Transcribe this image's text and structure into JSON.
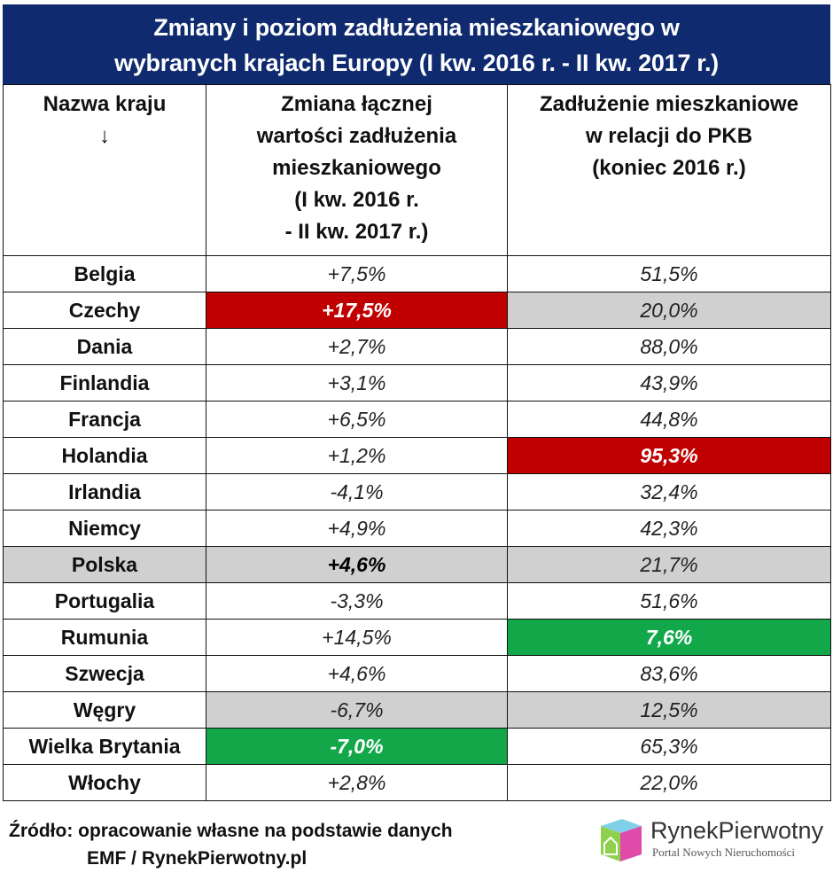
{
  "title": [
    "Zmiany i poziom zadłużenia mieszkaniowego w",
    "wybranych krajach Europy (I kw. 2016 r. - II kw. 2017 r.)"
  ],
  "colors": {
    "header": "#0f2a6e",
    "red": "#c00000",
    "green": "#12a84a",
    "grey": "#d0d0d0"
  },
  "chart_data": {
    "type": "table",
    "title": "Zmiany i poziom zadłużenia mieszkaniowego w wybranych krajach Europy (I kw. 2016 r. - II kw. 2017 r.)",
    "columns": [
      {
        "lines": [
          "Nazwa kraju",
          "↓"
        ]
      },
      {
        "lines": [
          "Zmiana łącznej",
          "wartości zadłużenia",
          "mieszkaniowego",
          "(I kw. 2016 r.",
          "- II kw. 2017 r.)"
        ]
      },
      {
        "lines": [
          "Zadłużenie mieszkaniowe",
          "w relacji do PKB",
          "(koniec 2016 r.)"
        ]
      }
    ],
    "rows": [
      {
        "country": "Belgia",
        "change": "+7,5%",
        "debt_gdp": "51,5%",
        "hl": [
          "",
          "",
          ""
        ]
      },
      {
        "country": "Czechy",
        "change": "+17,5%",
        "debt_gdp": "20,0%",
        "hl": [
          "",
          "red",
          "grey"
        ]
      },
      {
        "country": "Dania",
        "change": "+2,7%",
        "debt_gdp": "88,0%",
        "hl": [
          "",
          "",
          ""
        ]
      },
      {
        "country": "Finlandia",
        "change": "+3,1%",
        "debt_gdp": "43,9%",
        "hl": [
          "",
          "",
          ""
        ]
      },
      {
        "country": "Francja",
        "change": "+6,5%",
        "debt_gdp": "44,8%",
        "hl": [
          "",
          "",
          ""
        ]
      },
      {
        "country": "Holandia",
        "change": "+1,2%",
        "debt_gdp": "95,3%",
        "hl": [
          "",
          "",
          "red"
        ]
      },
      {
        "country": "Irlandia",
        "change": "-4,1%",
        "debt_gdp": "32,4%",
        "hl": [
          "",
          "",
          ""
        ]
      },
      {
        "country": "Niemcy",
        "change": "+4,9%",
        "debt_gdp": "42,3%",
        "hl": [
          "",
          "",
          ""
        ]
      },
      {
        "country": "Polska",
        "change": "+4,6%",
        "debt_gdp": "21,7%",
        "hl": [
          "grey",
          "grey bold",
          "grey"
        ]
      },
      {
        "country": "Portugalia",
        "change": "-3,3%",
        "debt_gdp": "51,6%",
        "hl": [
          "",
          "",
          ""
        ]
      },
      {
        "country": "Rumunia",
        "change": "+14,5%",
        "debt_gdp": "7,6%",
        "hl": [
          "",
          "",
          "green"
        ]
      },
      {
        "country": "Szwecja",
        "change": "+4,6%",
        "debt_gdp": "83,6%",
        "hl": [
          "",
          "",
          ""
        ]
      },
      {
        "country": "Węgry",
        "change": "-6,7%",
        "debt_gdp": "12,5%",
        "hl": [
          "",
          "grey",
          "grey"
        ]
      },
      {
        "country": "Wielka Brytania",
        "change": "-7,0%",
        "debt_gdp": "65,3%",
        "hl": [
          "",
          "green",
          ""
        ]
      },
      {
        "country": "Włochy",
        "change": "+2,8%",
        "debt_gdp": "22,0%",
        "hl": [
          "",
          "",
          ""
        ]
      }
    ]
  },
  "source": [
    "Źródło: opracowanie własne na podstawie danych",
    "EMF / RynekPierwotny.pl"
  ],
  "logo": {
    "name": "RynekPierwotny",
    "tagline": "Portal Nowych Nieruchomości"
  }
}
